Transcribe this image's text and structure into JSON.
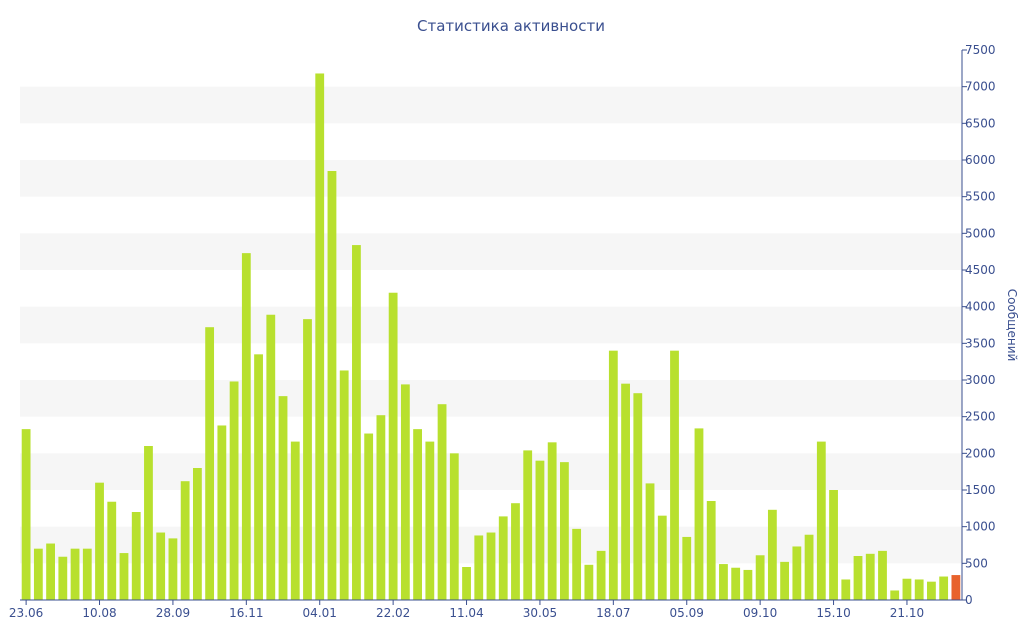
{
  "chart_data": {
    "type": "bar",
    "title": "Статистика активности",
    "xlabel": "",
    "ylabel": "Сообщений",
    "ylim": [
      0,
      7500
    ],
    "y_ticks": [
      0,
      500,
      1000,
      1500,
      2000,
      2500,
      3000,
      3500,
      4000,
      4500,
      5000,
      5500,
      6000,
      6500,
      7000,
      7500
    ],
    "y_axis_position": "right",
    "grid": "alternating horizontal bands",
    "x_tick_labels": [
      {
        "index": 0,
        "label": "23.06"
      },
      {
        "index": 6,
        "label": "10.08"
      },
      {
        "index": 12,
        "label": "28.09"
      },
      {
        "index": 18,
        "label": "16.11"
      },
      {
        "index": 24,
        "label": "04.01"
      },
      {
        "index": 30,
        "label": "22.02"
      },
      {
        "index": 36,
        "label": "11.04"
      },
      {
        "index": 42,
        "label": "30.05"
      },
      {
        "index": 48,
        "label": "18.07"
      },
      {
        "index": 54,
        "label": "05.09"
      },
      {
        "index": 60,
        "label": "09.10"
      },
      {
        "index": 66,
        "label": "15.10"
      },
      {
        "index": 72,
        "label": "21.10"
      }
    ],
    "values": [
      2330,
      700,
      770,
      590,
      700,
      700,
      1600,
      1340,
      640,
      1200,
      2100,
      920,
      840,
      1620,
      1800,
      3720,
      2380,
      2980,
      4730,
      3350,
      3890,
      2780,
      2160,
      3830,
      7180,
      5850,
      3130,
      4840,
      2270,
      2520,
      4190,
      2940,
      2330,
      2160,
      2670,
      2000,
      450,
      880,
      920,
      1140,
      1320,
      2040,
      1900,
      2150,
      1880,
      970,
      480,
      670,
      3400,
      2950,
      2820,
      1590,
      1150,
      3400,
      860,
      2340,
      1350,
      490,
      440,
      410,
      610,
      1230,
      520,
      730,
      890,
      2160,
      1500,
      280,
      600,
      630,
      670,
      130,
      290,
      280,
      250,
      320,
      340
    ],
    "highlight_index": 76,
    "colors": {
      "bar": "#b8e02e",
      "highlight": "#e8622c",
      "band": "#f6f6f6",
      "text": "#3a4f8f",
      "axis": "#3a4f8f"
    }
  }
}
